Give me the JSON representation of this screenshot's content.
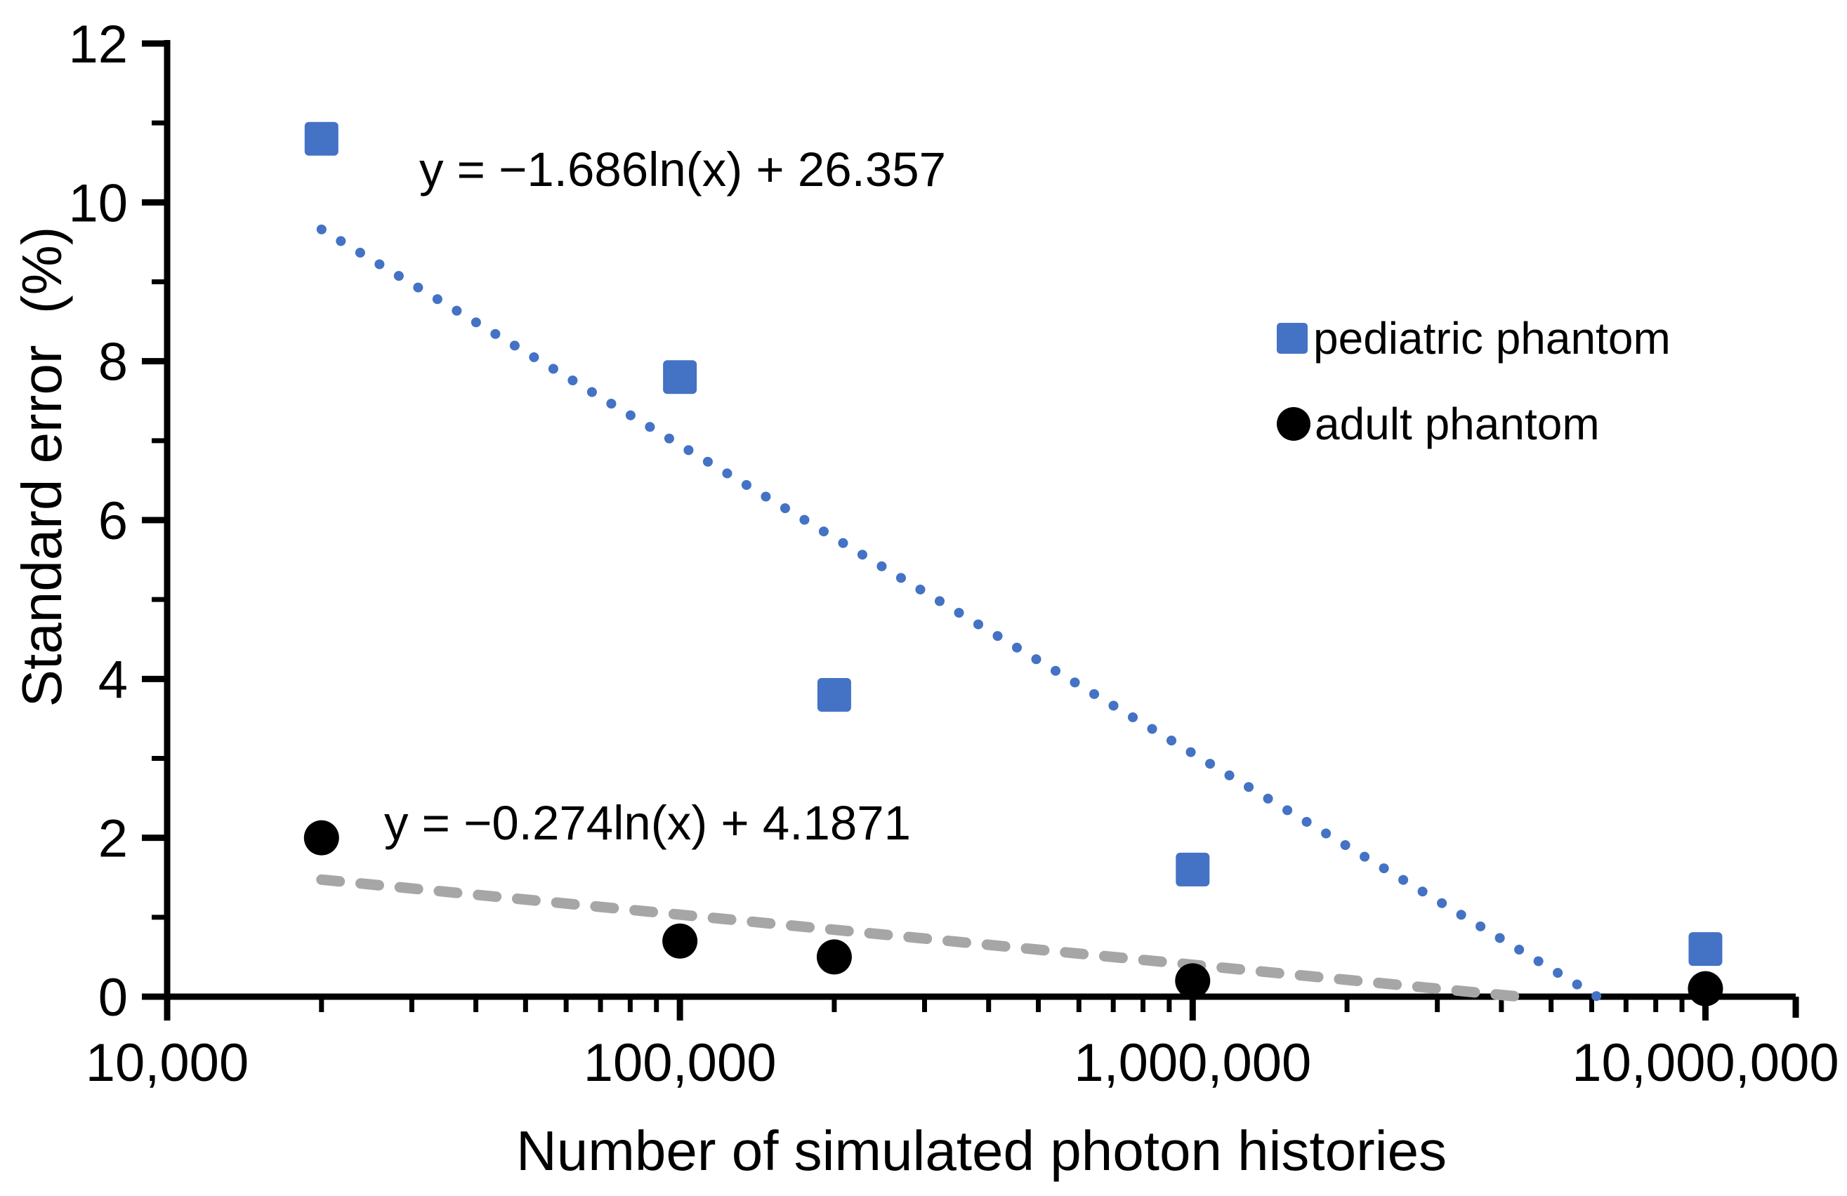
{
  "chart_data": {
    "type": "scatter",
    "title": "",
    "xlabel": "Number of simulated photon histories",
    "ylabel": "Standard error  (%)",
    "x_scale": "log",
    "xlim": [
      10000,
      15000000
    ],
    "ylim": [
      0,
      12
    ],
    "grid": false,
    "background": "#FFFFFF",
    "axis_color": "#000000",
    "y_major_ticks": [
      0,
      2,
      4,
      6,
      8,
      10,
      12
    ],
    "y_minor_ticks": [
      1,
      3,
      5,
      7,
      9,
      11
    ],
    "x_major_ticks": [
      {
        "value": 10000,
        "label": "10,000"
      },
      {
        "value": 100000,
        "label": "100,000"
      },
      {
        "value": 1000000,
        "label": "1,000,000"
      },
      {
        "value": 10000000,
        "label": "10,000,000"
      }
    ],
    "series": [
      {
        "name": "pediatric phantom",
        "marker": "square",
        "color": "#4472C4",
        "points": [
          [
            20000,
            10.8
          ],
          [
            100000,
            7.8
          ],
          [
            200000,
            3.8
          ],
          [
            1000000,
            1.6
          ],
          [
            10000000,
            0.6
          ]
        ]
      },
      {
        "name": "adult phantom",
        "marker": "circle",
        "color": "#000000",
        "points": [
          [
            20000,
            2.0
          ],
          [
            100000,
            0.7
          ],
          [
            200000,
            0.5
          ],
          [
            1000000,
            0.2
          ],
          [
            10000000,
            0.1
          ]
        ]
      }
    ],
    "trendlines": [
      {
        "series": "pediatric phantom",
        "equation": "y = −1.686ln(x) + 26.357",
        "a": -1.686,
        "b": 26.357,
        "x_start": 20000,
        "style": "dotted",
        "color": "#4472C4"
      },
      {
        "series": "adult phantom",
        "equation": "y = −0.274ln(x) + 4.1871",
        "a": -0.274,
        "b": 4.1871,
        "x_start": 20000,
        "style": "dashed",
        "color": "#A6A6A6"
      }
    ],
    "legend": {
      "position": "upper-right",
      "items": [
        {
          "label": "pediatric phantom",
          "marker": "square",
          "color": "#4472C4"
        },
        {
          "label": "adult phantom",
          "marker": "circle",
          "color": "#000000"
        }
      ]
    }
  }
}
